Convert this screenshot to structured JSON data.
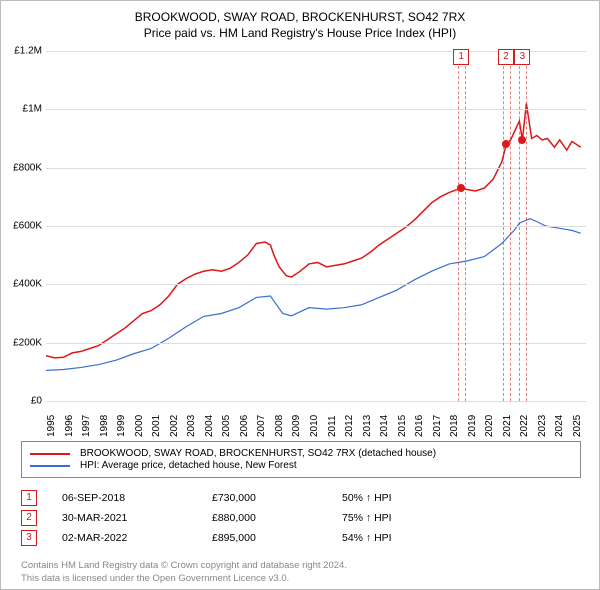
{
  "title": {
    "line1": "BROOKWOOD, SWAY ROAD, BROCKENHURST, SO42 7RX",
    "line2": "Price paid vs. HM Land Registry's House Price Index (HPI)",
    "fontsize": 12,
    "color": "#000000"
  },
  "chart": {
    "type": "line",
    "background_color": "#ffffff",
    "grid_color": "#dddddd",
    "axis_color": "#888888",
    "x": {
      "min": 1995,
      "max": 2025.8,
      "ticks": [
        1995,
        1996,
        1997,
        1998,
        1999,
        2000,
        2001,
        2002,
        2003,
        2004,
        2005,
        2006,
        2007,
        2008,
        2009,
        2010,
        2011,
        2012,
        2013,
        2014,
        2015,
        2016,
        2017,
        2018,
        2019,
        2020,
        2021,
        2022,
        2023,
        2024,
        2025
      ]
    },
    "y": {
      "min": 0,
      "max": 1200000,
      "ticks": [
        {
          "v": 0,
          "label": "£0"
        },
        {
          "v": 200000,
          "label": "£200K"
        },
        {
          "v": 400000,
          "label": "£400K"
        },
        {
          "v": 600000,
          "label": "£600K"
        },
        {
          "v": 800000,
          "label": "£800K"
        },
        {
          "v": 1000000,
          "label": "£1M"
        },
        {
          "v": 1200000,
          "label": "£1.2M"
        }
      ],
      "label_fontsize": 10
    },
    "series": [
      {
        "name": "BROOKWOOD, SWAY ROAD, BROCKENHURST, SO42 7RX (detached house)",
        "color": "#dc1818",
        "line_width": 1.5,
        "points": [
          [
            1995,
            155000
          ],
          [
            1995.5,
            148000
          ],
          [
            1996,
            150000
          ],
          [
            1996.5,
            165000
          ],
          [
            1997,
            170000
          ],
          [
            1997.5,
            180000
          ],
          [
            1998,
            190000
          ],
          [
            1998.5,
            210000
          ],
          [
            1999,
            230000
          ],
          [
            1999.5,
            250000
          ],
          [
            2000,
            275000
          ],
          [
            2000.5,
            300000
          ],
          [
            2001,
            310000
          ],
          [
            2001.5,
            330000
          ],
          [
            2002,
            360000
          ],
          [
            2002.5,
            400000
          ],
          [
            2003,
            420000
          ],
          [
            2003.5,
            435000
          ],
          [
            2004,
            445000
          ],
          [
            2004.5,
            450000
          ],
          [
            2005,
            445000
          ],
          [
            2005.5,
            455000
          ],
          [
            2006,
            475000
          ],
          [
            2006.5,
            500000
          ],
          [
            2007,
            540000
          ],
          [
            2007.5,
            545000
          ],
          [
            2007.8,
            535000
          ],
          [
            2008,
            500000
          ],
          [
            2008.3,
            460000
          ],
          [
            2008.7,
            430000
          ],
          [
            2009,
            425000
          ],
          [
            2009.5,
            445000
          ],
          [
            2010,
            470000
          ],
          [
            2010.5,
            475000
          ],
          [
            2011,
            460000
          ],
          [
            2011.5,
            465000
          ],
          [
            2012,
            470000
          ],
          [
            2012.5,
            480000
          ],
          [
            2013,
            490000
          ],
          [
            2013.5,
            510000
          ],
          [
            2014,
            535000
          ],
          [
            2014.5,
            555000
          ],
          [
            2015,
            575000
          ],
          [
            2015.5,
            595000
          ],
          [
            2016,
            620000
          ],
          [
            2016.5,
            650000
          ],
          [
            2017,
            680000
          ],
          [
            2017.5,
            700000
          ],
          [
            2018,
            715000
          ],
          [
            2018.7,
            730000
          ],
          [
            2019,
            725000
          ],
          [
            2019.5,
            720000
          ],
          [
            2020,
            730000
          ],
          [
            2020.5,
            760000
          ],
          [
            2021,
            820000
          ],
          [
            2021.25,
            880000
          ],
          [
            2021.5,
            895000
          ],
          [
            2022,
            960000
          ],
          [
            2022.17,
            895000
          ],
          [
            2022.4,
            1020000
          ],
          [
            2022.7,
            900000
          ],
          [
            2023,
            910000
          ],
          [
            2023.3,
            895000
          ],
          [
            2023.6,
            900000
          ],
          [
            2024,
            870000
          ],
          [
            2024.3,
            895000
          ],
          [
            2024.7,
            860000
          ],
          [
            2025,
            890000
          ],
          [
            2025.5,
            870000
          ]
        ]
      },
      {
        "name": "HPI: Average price, detached house, New Forest",
        "color": "#3a6fcf",
        "line_width": 1.2,
        "points": [
          [
            1995,
            105000
          ],
          [
            1996,
            108000
          ],
          [
            1997,
            115000
          ],
          [
            1998,
            125000
          ],
          [
            1999,
            140000
          ],
          [
            2000,
            162000
          ],
          [
            2001,
            180000
          ],
          [
            2002,
            215000
          ],
          [
            2003,
            255000
          ],
          [
            2004,
            290000
          ],
          [
            2005,
            300000
          ],
          [
            2006,
            320000
          ],
          [
            2007,
            355000
          ],
          [
            2007.8,
            360000
          ],
          [
            2008.5,
            300000
          ],
          [
            2009,
            292000
          ],
          [
            2010,
            320000
          ],
          [
            2011,
            315000
          ],
          [
            2012,
            320000
          ],
          [
            2013,
            330000
          ],
          [
            2014,
            355000
          ],
          [
            2015,
            380000
          ],
          [
            2016,
            415000
          ],
          [
            2017,
            445000
          ],
          [
            2018,
            470000
          ],
          [
            2019,
            480000
          ],
          [
            2020,
            495000
          ],
          [
            2021,
            540000
          ],
          [
            2021.7,
            585000
          ],
          [
            2022,
            610000
          ],
          [
            2022.6,
            625000
          ],
          [
            2023,
            615000
          ],
          [
            2023.5,
            600000
          ],
          [
            2024,
            595000
          ],
          [
            2024.5,
            590000
          ],
          [
            2025,
            585000
          ],
          [
            2025.5,
            575000
          ]
        ]
      }
    ],
    "markers": [
      {
        "x": 2018.68,
        "y": 730000,
        "color": "#dc1818",
        "size": 8
      },
      {
        "x": 2021.24,
        "y": 880000,
        "color": "#dc1818",
        "size": 8
      },
      {
        "x": 2022.17,
        "y": 895000,
        "color": "#dc1818",
        "size": 8
      }
    ],
    "event_bands": [
      {
        "x": 2018.68,
        "label": "1",
        "color": "#dc1818",
        "width": 6
      },
      {
        "x": 2021.24,
        "label": "2",
        "color": "#dc1818",
        "width": 6
      },
      {
        "x": 2022.17,
        "label": "3",
        "color": "#dc1818",
        "width": 6
      }
    ]
  },
  "legend": {
    "items": [
      {
        "color": "#dc1818",
        "label": "BROOKWOOD, SWAY ROAD, BROCKENHURST, SO42 7RX (detached house)"
      },
      {
        "color": "#3a6fcf",
        "label": "HPI: Average price, detached house, New Forest"
      }
    ],
    "fontsize": 10,
    "border_color": "#888888"
  },
  "events": [
    {
      "n": "1",
      "color": "#dc1818",
      "date": "06-SEP-2018",
      "price": "£730,000",
      "delta": "50% ↑ HPI"
    },
    {
      "n": "2",
      "color": "#dc1818",
      "date": "30-MAR-2021",
      "price": "£880,000",
      "delta": "75% ↑ HPI"
    },
    {
      "n": "3",
      "color": "#dc1818",
      "date": "02-MAR-2022",
      "price": "£895,000",
      "delta": "54% ↑ HPI"
    }
  ],
  "footer": {
    "line1": "Contains HM Land Registry data © Crown copyright and database right 2024.",
    "line2": "This data is licensed under the Open Government Licence v3.0.",
    "color": "#888888"
  }
}
